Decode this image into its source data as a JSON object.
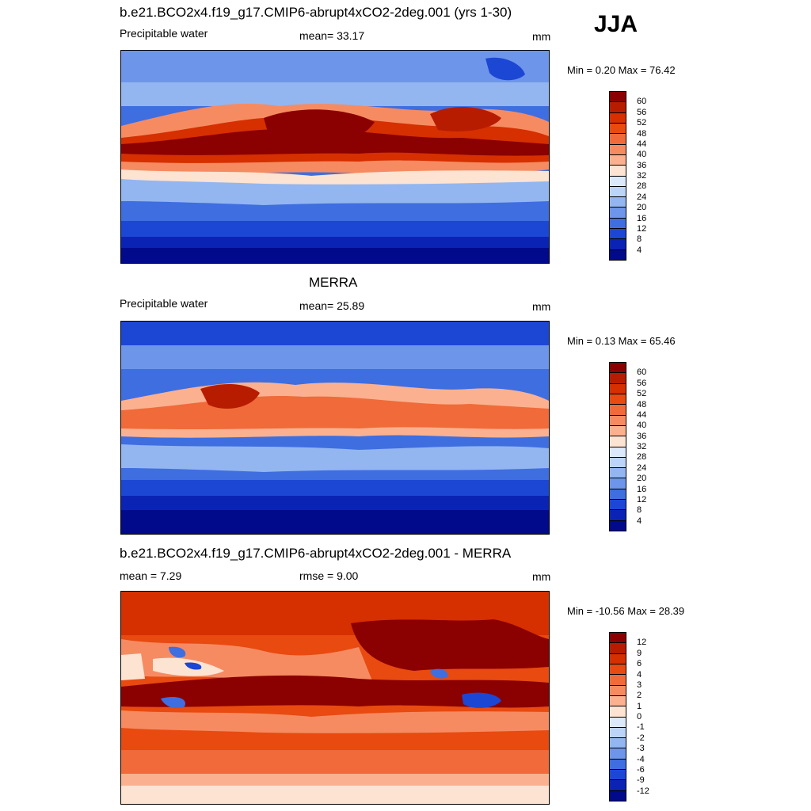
{
  "season": "JJA",
  "units": "mm",
  "panels": [
    {
      "id": "model",
      "title": "b.e21.BCO2x4.f19_g17.CMIP6-abrupt4xCO2-2deg.001 (yrs 1-30)",
      "left_label": "Precipitable water",
      "center_label": "mean=  33.17",
      "right_label": "mm",
      "minmax": "Min =   0.20 Max =  76.42",
      "colorbar_ticks": [
        "60",
        "56",
        "52",
        "48",
        "44",
        "40",
        "36",
        "32",
        "28",
        "24",
        "20",
        "16",
        "12",
        "8",
        "4"
      ],
      "colors": [
        "#8b0000",
        "#b81c00",
        "#d62f00",
        "#e84a10",
        "#f06a3a",
        "#f68b62",
        "#fbb18f",
        "#fde3d2",
        "#dbe9fb",
        "#bcd4f7",
        "#93b6f0",
        "#6d96ea",
        "#3f6ee0",
        "#1c47d4",
        "#0a23b4",
        "#000a8a"
      ]
    },
    {
      "id": "obs",
      "title": "MERRA",
      "left_label": "Precipitable water",
      "center_label": "mean=  25.89",
      "right_label": "mm",
      "minmax": "Min =   0.13 Max =  65.46",
      "colorbar_ticks": [
        "60",
        "56",
        "52",
        "48",
        "44",
        "40",
        "36",
        "32",
        "28",
        "24",
        "20",
        "16",
        "12",
        "8",
        "4"
      ],
      "colors": [
        "#8b0000",
        "#b81c00",
        "#d62f00",
        "#e84a10",
        "#f06a3a",
        "#f68b62",
        "#fbb18f",
        "#fde3d2",
        "#dbe9fb",
        "#bcd4f7",
        "#93b6f0",
        "#6d96ea",
        "#3f6ee0",
        "#1c47d4",
        "#0a23b4",
        "#000a8a"
      ]
    },
    {
      "id": "diff",
      "title": "b.e21.BCO2x4.f19_g17.CMIP6-abrupt4xCO2-2deg.001 - MERRA",
      "left_label": "mean =   7.29",
      "center_label": "rmse =   9.00",
      "right_label": "mm",
      "minmax": "Min = -10.56 Max =  28.39",
      "colorbar_ticks": [
        "12",
        "9",
        "6",
        "4",
        "3",
        "2",
        "1",
        "0",
        "-1",
        "-2",
        "-3",
        "-4",
        "-6",
        "-9",
        "-12"
      ],
      "colors": [
        "#8b0000",
        "#b81c00",
        "#d62f00",
        "#e84a10",
        "#f06a3a",
        "#f68b62",
        "#fbb18f",
        "#fde3d2",
        "#dbe9fb",
        "#bcd4f7",
        "#93b6f0",
        "#6d96ea",
        "#3f6ee0",
        "#1c47d4",
        "#0a23b4",
        "#000a8a"
      ]
    }
  ]
}
